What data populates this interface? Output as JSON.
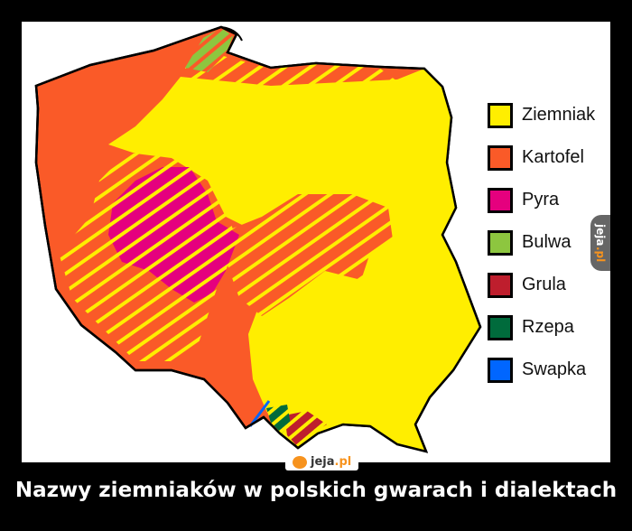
{
  "legend": [
    {
      "label": "Ziemniak",
      "color": "#ffee00"
    },
    {
      "label": "Kartofel",
      "color": "#fa5a28"
    },
    {
      "label": "Pyra",
      "color": "#e5007e"
    },
    {
      "label": "Bulwa",
      "color": "#8dc63f"
    },
    {
      "label": "Grula",
      "color": "#be1e2d"
    },
    {
      "label": "Rzepa",
      "color": "#006b3c"
    },
    {
      "label": "Swapka",
      "color": "#0066ff"
    }
  ],
  "watermark": {
    "brand": "jeja",
    "tld": ".pl"
  },
  "caption": "Nazwy ziemniaków w polskich gwarach i dialektach"
}
